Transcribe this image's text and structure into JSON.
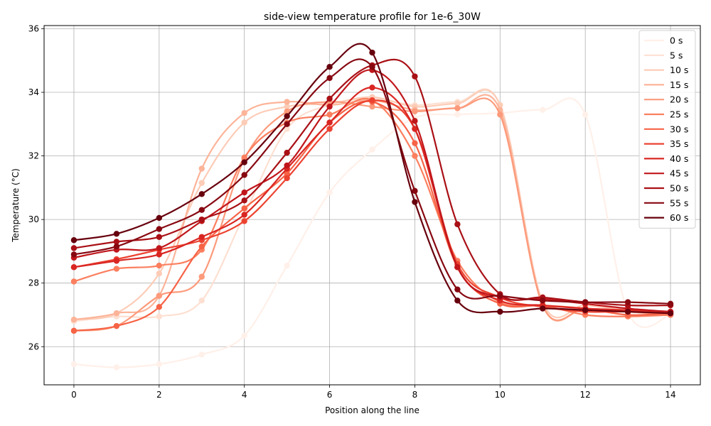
{
  "chart_data": {
    "type": "line",
    "title": "side-view temperature profile for 1e-6_30W",
    "xlabel": "Position along the line",
    "ylabel": "Temperature (°C)",
    "xlim": [
      -0.7,
      14.7
    ],
    "ylim": [
      24.8,
      36.1
    ],
    "xticks": [
      0,
      2,
      4,
      6,
      8,
      10,
      12,
      14
    ],
    "yticks": [
      26,
      28,
      30,
      32,
      34,
      36
    ],
    "grid": true,
    "legend_position": "upper right",
    "series": [
      {
        "name": "0 s",
        "color": "#fff0e9",
        "x": [
          0,
          1,
          2,
          3,
          4,
          5,
          6,
          7,
          8,
          9,
          10,
          11,
          12,
          13,
          14
        ],
        "y": [
          25.45,
          25.35,
          25.45,
          25.75,
          26.35,
          28.55,
          30.85,
          32.2,
          33.2,
          33.3,
          33.35,
          33.45,
          33.3,
          27.1,
          27.0
        ]
      },
      {
        "name": "5 s",
        "color": "#fde0d2",
        "x": [
          0,
          1,
          2,
          3,
          4,
          5,
          6,
          7,
          8,
          9,
          10,
          11,
          12,
          13,
          14
        ],
        "y": [
          26.8,
          26.95,
          26.95,
          27.45,
          30.15,
          32.85,
          33.6,
          33.8,
          33.6,
          33.7,
          33.6,
          27.3,
          27.2,
          27.1,
          27.0
        ]
      },
      {
        "name": "10 s",
        "color": "#fcccb7",
        "x": [
          0,
          1,
          2,
          3,
          4,
          5,
          6,
          7,
          8,
          9,
          10,
          11,
          12,
          13,
          14
        ],
        "y": [
          26.85,
          27.05,
          28.3,
          31.15,
          33.05,
          33.55,
          33.65,
          33.85,
          33.55,
          33.65,
          33.6,
          27.4,
          27.3,
          27.15,
          27.05
        ]
      },
      {
        "name": "15 s",
        "color": "#fcb499",
        "x": [
          0,
          1,
          2,
          3,
          4,
          5,
          6,
          7,
          8,
          9,
          10,
          11,
          12,
          13,
          14
        ],
        "y": [
          26.85,
          27.05,
          27.6,
          31.6,
          33.35,
          33.7,
          33.6,
          33.75,
          33.45,
          33.5,
          33.45,
          27.3,
          27.2,
          27.1,
          27.0
        ]
      },
      {
        "name": "20 s",
        "color": "#fc9a7b",
        "x": [
          0,
          1,
          2,
          3,
          4,
          5,
          6,
          7,
          8,
          9,
          10,
          11,
          12,
          13,
          14
        ],
        "y": [
          26.5,
          26.65,
          27.6,
          28.2,
          31.9,
          33.4,
          33.7,
          33.55,
          33.4,
          33.5,
          33.3,
          27.3,
          27.2,
          27.1,
          27.0
        ]
      },
      {
        "name": "25 s",
        "color": "#fb7f5f",
        "x": [
          0,
          1,
          2,
          3,
          4,
          5,
          6,
          7,
          8,
          9,
          10,
          11,
          12,
          13,
          14
        ],
        "y": [
          28.05,
          28.45,
          28.55,
          29.05,
          31.95,
          33.05,
          33.3,
          33.75,
          32.0,
          28.7,
          27.4,
          27.3,
          27.0,
          26.95,
          27.0
        ]
      },
      {
        "name": "30 s",
        "color": "#f66346",
        "x": [
          0,
          1,
          2,
          3,
          4,
          5,
          6,
          7,
          8,
          9,
          10,
          11,
          12,
          13,
          14
        ],
        "y": [
          26.5,
          26.65,
          27.25,
          29.15,
          30.35,
          31.45,
          33.05,
          33.7,
          32.4,
          28.5,
          27.35,
          27.3,
          27.2,
          27.0,
          27.05
        ]
      },
      {
        "name": "35 s",
        "color": "#ec4331",
        "x": [
          0,
          1,
          2,
          3,
          4,
          5,
          6,
          7,
          8,
          9,
          10,
          11,
          12,
          13,
          14
        ],
        "y": [
          28.5,
          28.75,
          29.05,
          29.35,
          29.95,
          31.3,
          32.85,
          33.75,
          32.85,
          28.6,
          27.55,
          27.25,
          27.1,
          27.1,
          27.05
        ]
      },
      {
        "name": "40 s",
        "color": "#d92622",
        "x": [
          0,
          1,
          2,
          3,
          4,
          5,
          6,
          7,
          8,
          9,
          10,
          11,
          12,
          13,
          14
        ],
        "y": [
          28.5,
          28.7,
          28.9,
          29.45,
          30.15,
          31.6,
          33.05,
          34.15,
          32.85,
          28.5,
          27.45,
          27.3,
          27.2,
          27.15,
          27.1
        ]
      },
      {
        "name": "45 s",
        "color": "#c0161b",
        "x": [
          0,
          1,
          2,
          3,
          4,
          5,
          6,
          7,
          8,
          9,
          10,
          11,
          12,
          13,
          14
        ],
        "y": [
          28.8,
          29.05,
          29.1,
          29.95,
          30.85,
          31.7,
          33.55,
          34.7,
          33.1,
          28.5,
          27.55,
          27.5,
          27.35,
          27.2,
          27.1
        ]
      },
      {
        "name": "50 s",
        "color": "#a91016",
        "x": [
          0,
          1,
          2,
          3,
          4,
          5,
          6,
          7,
          8,
          9,
          10,
          11,
          12,
          13,
          14
        ],
        "y": [
          29.1,
          29.3,
          29.45,
          30.0,
          30.6,
          32.1,
          33.8,
          34.85,
          34.5,
          29.85,
          27.65,
          27.55,
          27.4,
          27.3,
          27.3
        ]
      },
      {
        "name": "55 s",
        "color": "#870811",
        "x": [
          0,
          1,
          2,
          3,
          4,
          5,
          6,
          7,
          8,
          9,
          10,
          11,
          12,
          13,
          14
        ],
        "y": [
          28.9,
          29.15,
          29.7,
          30.3,
          31.4,
          33.0,
          34.45,
          34.8,
          30.9,
          27.8,
          27.6,
          27.45,
          27.4,
          27.4,
          27.35
        ]
      },
      {
        "name": "60 s",
        "color": "#67000d",
        "x": [
          0,
          1,
          2,
          3,
          4,
          5,
          6,
          7,
          8,
          9,
          10,
          11,
          12,
          13,
          14
        ],
        "y": [
          29.35,
          29.55,
          30.05,
          30.8,
          31.8,
          33.25,
          34.8,
          35.25,
          30.55,
          27.45,
          27.1,
          27.2,
          27.15,
          27.1,
          27.05
        ]
      }
    ]
  }
}
